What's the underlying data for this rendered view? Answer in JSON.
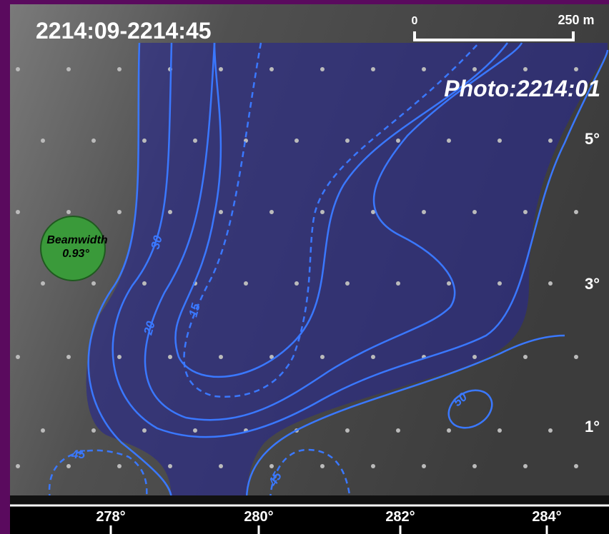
{
  "header": {
    "time_range": "2214:09-2214:45",
    "photo_time": "Photo:2214:01"
  },
  "scale_bar": {
    "start": "0",
    "end": "250 m"
  },
  "elevation_labels": [
    "5°",
    "3°",
    "1°"
  ],
  "azimuth_labels": [
    "278°",
    "280°",
    "282°",
    "284°"
  ],
  "beamwidth": {
    "title": "Beamwidth",
    "value": "0.93°"
  },
  "contour_labels": [
    "30",
    "20",
    "15",
    "50",
    "45",
    "45"
  ]
}
